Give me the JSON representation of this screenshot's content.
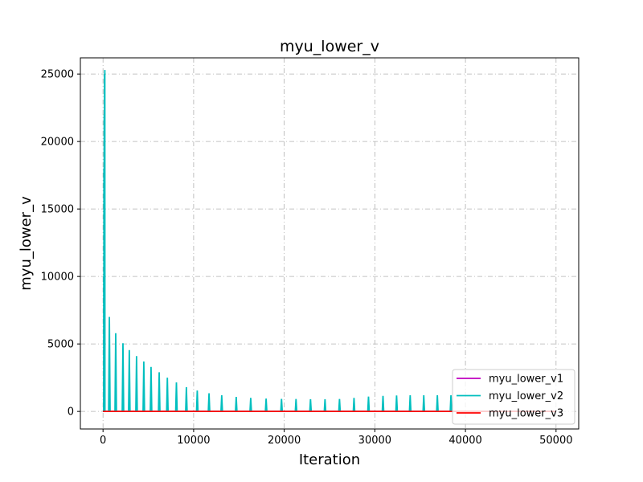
{
  "chart_data": {
    "type": "line",
    "title": "myu_lower_v",
    "xlabel": "Iteration",
    "ylabel": "myu_lower_v",
    "xlim": [
      -2500,
      52500
    ],
    "ylim": [
      -1300,
      26200
    ],
    "xticks": [
      0,
      10000,
      20000,
      30000,
      40000,
      50000
    ],
    "yticks": [
      0,
      5000,
      10000,
      15000,
      20000,
      25000
    ],
    "grid": true,
    "legend_position": "lower-right",
    "series": [
      {
        "name": "myu_lower_v1",
        "color": "#bf00bf",
        "x": [
          0,
          50000
        ],
        "y": [
          0,
          0
        ]
      },
      {
        "name": "myu_lower_v2",
        "color": "#00bfbf",
        "peaks_x": [
          80,
          100,
          130,
          160,
          200,
          700,
          1400,
          2200,
          2900,
          3700,
          4500,
          5300,
          6200,
          7100,
          8100,
          9200,
          10400,
          11700,
          13100,
          14700,
          16300,
          18000,
          19700,
          21300,
          22900,
          24500,
          26100,
          27700,
          29300,
          30900,
          32400,
          33900,
          35400,
          36900,
          38400
        ],
        "peaks_y": [
          10000,
          18000,
          22000,
          25000,
          25300,
          7000,
          5800,
          5050,
          4550,
          4100,
          3700,
          3300,
          2900,
          2500,
          2150,
          1800,
          1550,
          1350,
          1200,
          1080,
          1000,
          950,
          930,
          920,
          910,
          910,
          920,
          1000,
          1100,
          1150,
          1180,
          1200,
          1200,
          1200,
          1200
        ],
        "baseline": 0
      },
      {
        "name": "myu_lower_v3",
        "color": "#ff0000",
        "x": [
          0,
          50000
        ],
        "y": [
          0,
          0
        ]
      }
    ]
  }
}
